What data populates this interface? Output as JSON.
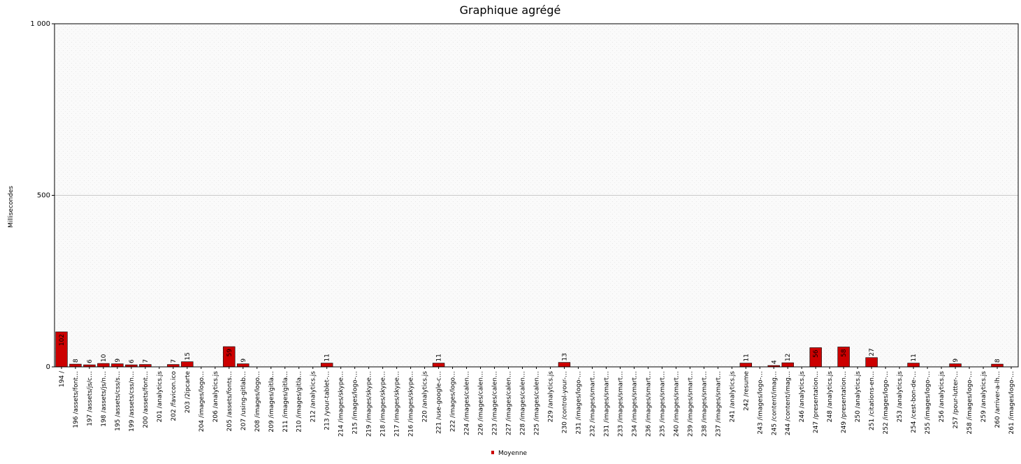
{
  "chart_data": {
    "type": "bar",
    "title": "Graphique agrégé",
    "xlabel": "",
    "ylabel": "Millisecondes",
    "ylim": [
      0,
      1000
    ],
    "yticks": [
      {
        "value": 0,
        "label": "0"
      },
      {
        "value": 500,
        "label": "500"
      },
      {
        "value": 1000,
        "label": "1 000"
      }
    ],
    "grid": true,
    "legend_position": "bottom-center",
    "series": [
      {
        "name": "Moyenne",
        "color": "#cc0000",
        "values": [
          102,
          8,
          6,
          10,
          9,
          6,
          7,
          null,
          7,
          15,
          null,
          null,
          59,
          9,
          null,
          null,
          null,
          null,
          null,
          11,
          null,
          null,
          null,
          null,
          null,
          null,
          null,
          11,
          null,
          null,
          null,
          null,
          null,
          null,
          null,
          null,
          13,
          null,
          null,
          null,
          null,
          null,
          null,
          null,
          null,
          null,
          null,
          null,
          null,
          11,
          null,
          4,
          12,
          null,
          56,
          null,
          58,
          null,
          27,
          null,
          null,
          11,
          null,
          null,
          9,
          null,
          null,
          8,
          null
        ]
      }
    ],
    "categories": [
      "194 /",
      "196 /assets/font…",
      "197 /assets/js/c…",
      "198 /assets/js/n…",
      "195 /assets/css/s…",
      "199 /assets/css/n…",
      "200 /assets/font…",
      "201 /analytics.js",
      "202 /favicon.ico",
      "203 /2ipcarte",
      "204 /images/logo…",
      "206 /analytics.js",
      "205 /assets/fonts…",
      "207 /using-gitlab…",
      "208 /images/logo…",
      "209 /images/gitla…",
      "211 /images/gitla…",
      "210 /images/gitla…",
      "212 /analytics.js",
      "213 /your-tablet-…",
      "214 /images/skype…",
      "215 /images/logo-…",
      "219 /images/skype…",
      "218 /images/skype…",
      "217 /images/skype…",
      "216 /images/skype…",
      "220 /analytics.js",
      "221 /use-google-c…",
      "222 /images/logo…",
      "224 /images/calen…",
      "226 /images/calen…",
      "223 /images/calen…",
      "227 /images/calen…",
      "228 /images/calen…",
      "225 /images/calen…",
      "229 /analytics.js",
      "230 /control-your-…",
      "231 /images/logo-…",
      "232 /images/smart…",
      "231 /images/smart…",
      "233 /images/smart…",
      "234 /images/smart…",
      "236 /images/smart…",
      "235 /images/smart…",
      "240 /images/smart…",
      "239 /images/smart…",
      "238 /images/smart…",
      "237 /images/smart…",
      "241 /analytics.js",
      "242 /resume",
      "243 /images/logo-…",
      "245 /content/imag…",
      "244 /content/imag…",
      "246 /analytics.js",
      "247 /presentation…",
      "248 /analytics.js",
      "249 /presentation…",
      "250 /analytics.js",
      "251 /citations-en…",
      "252 /images/logo-…",
      "253 /analytics.js",
      "254 /cest-bon-de-…",
      "255 /images/logo-…",
      "256 /analytics.js",
      "257 /pour-lutter-…",
      "258 /images/logo-…",
      "259 /analytics.js",
      "260 /arriver-a-lh…",
      "261 /images/logo-…"
    ]
  }
}
